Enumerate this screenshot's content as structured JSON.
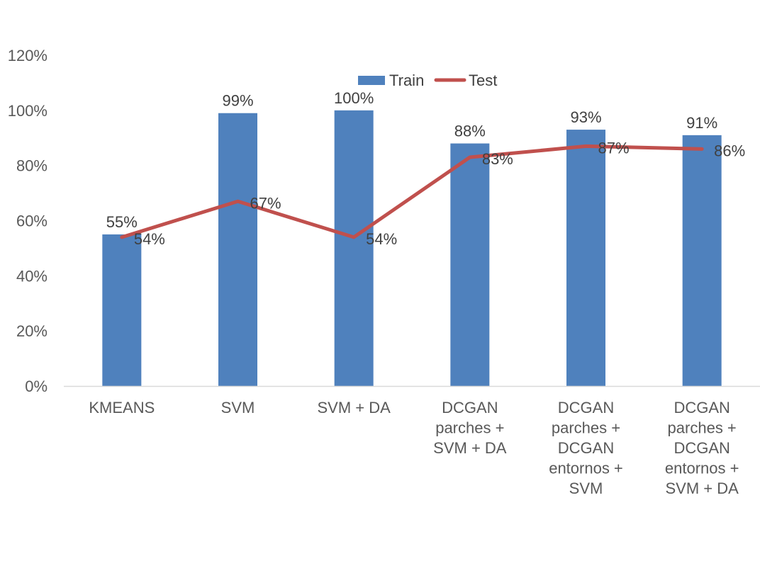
{
  "chart_data": {
    "type": "bar",
    "categories": [
      [
        "KMEANS"
      ],
      [
        "SVM"
      ],
      [
        "SVM + DA"
      ],
      [
        "DCGAN",
        "parches +",
        "SVM + DA"
      ],
      [
        "DCGAN",
        "parches +",
        "DCGAN",
        "entornos +",
        "SVM"
      ],
      [
        "DCGAN",
        "parches +",
        "DCGAN",
        "entornos +",
        "SVM + DA"
      ]
    ],
    "series": [
      {
        "name": "Train",
        "kind": "bar",
        "color": "#4f81bd",
        "values": [
          55,
          99,
          100,
          88,
          93,
          91
        ],
        "labels": [
          "55%",
          "99%",
          "100%",
          "88%",
          "93%",
          "91%"
        ]
      },
      {
        "name": "Test",
        "kind": "line",
        "color": "#c0504d",
        "values": [
          54,
          67,
          54,
          83,
          87,
          86
        ],
        "labels": [
          "54%",
          "67%",
          "54%",
          "83%",
          "87%",
          "86%"
        ]
      }
    ],
    "y_ticks": [
      "0%",
      "20%",
      "40%",
      "60%",
      "80%",
      "100%",
      "120%"
    ],
    "ylim": [
      0,
      120
    ],
    "legend_position": "top",
    "grid": false
  }
}
